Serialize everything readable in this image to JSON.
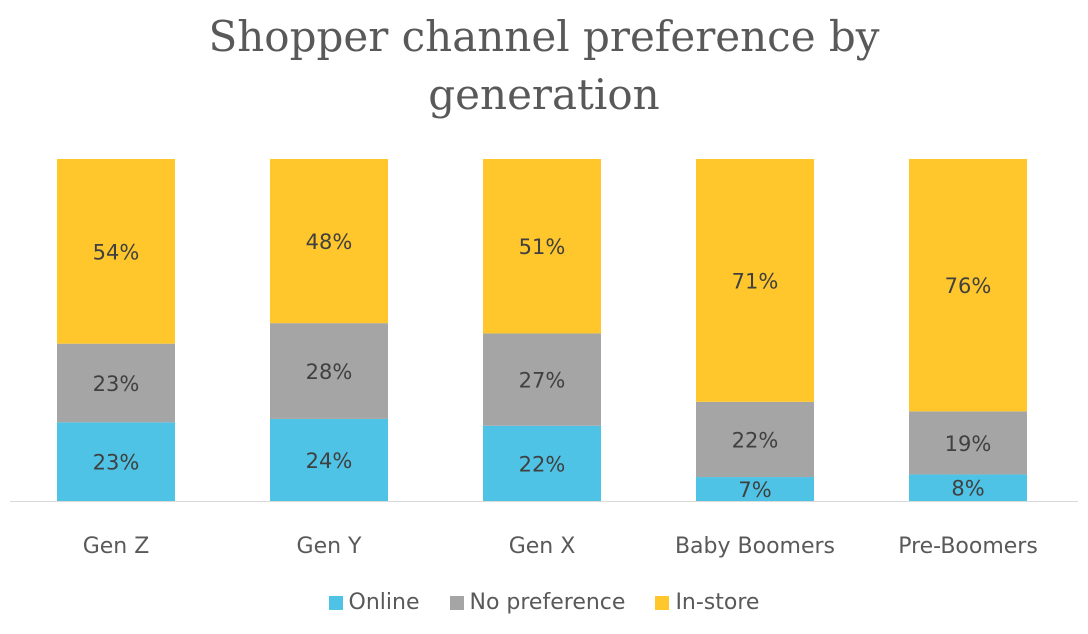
{
  "chart_data": {
    "type": "bar",
    "stacked": true,
    "title": "Shopper channel preference by generation",
    "categories": [
      "Gen Z",
      "Gen Y",
      "Gen X",
      "Baby Boomers",
      "Pre-Boomers"
    ],
    "series": [
      {
        "name": "Online",
        "color": "#4EC3E6",
        "values": [
          23,
          24,
          22,
          7,
          8
        ]
      },
      {
        "name": "No preference",
        "color": "#A5A5A5",
        "values": [
          23,
          28,
          27,
          22,
          19
        ]
      },
      {
        "name": "In-store",
        "color": "#FFC72C",
        "values": [
          54,
          48,
          51,
          71,
          76
        ]
      }
    ],
    "value_suffix": "%",
    "legend": "bottom",
    "grid": false
  }
}
